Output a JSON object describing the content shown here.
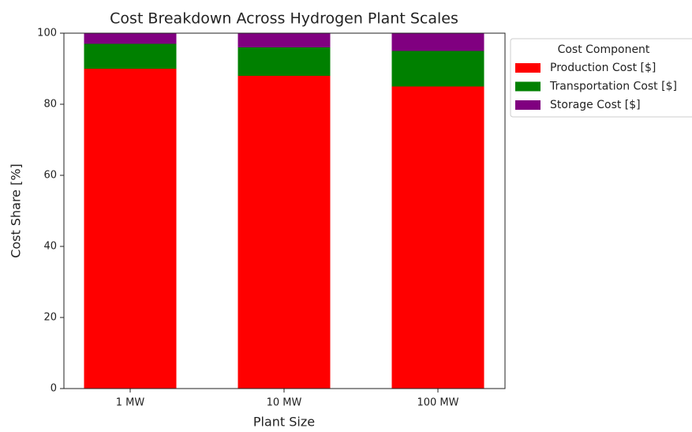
{
  "chart_data": {
    "type": "bar",
    "stacked": true,
    "title": "Cost Breakdown Across Hydrogen Plant Scales",
    "x_label": "Plant Size",
    "y_label": "Cost Share [%]",
    "categories": [
      "1 MW",
      "10 MW",
      "100 MW"
    ],
    "series": [
      {
        "name": "Production Cost [$]",
        "color": "#ff0000",
        "values": [
          90,
          88,
          85
        ]
      },
      {
        "name": "Transportation Cost [$]",
        "color": "#008000",
        "values": [
          7,
          8,
          10
        ]
      },
      {
        "name": "Storage Cost [$]",
        "color": "#800080",
        "values": [
          3,
          4,
          5
        ]
      }
    ],
    "legend_title": "Cost Component",
    "legend_position": "outside right",
    "ylim": [
      0,
      100
    ],
    "yticks": [
      0,
      20,
      40,
      60,
      80,
      100
    ],
    "grid": false
  }
}
